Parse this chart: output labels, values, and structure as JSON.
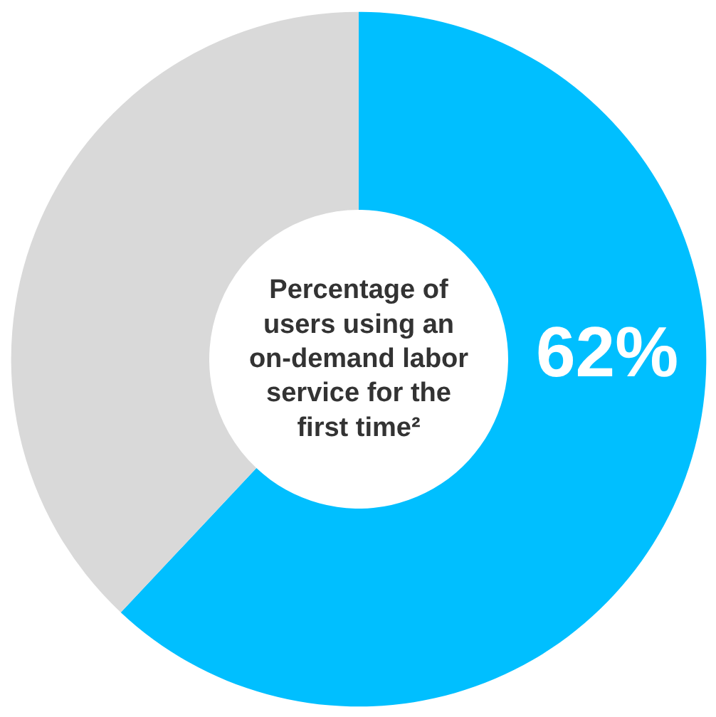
{
  "chart_data": {
    "type": "donut",
    "title": "Percentage of users using an on-demand labor service for the first time²",
    "categories": [
      null,
      null
    ],
    "values": [
      62,
      38
    ],
    "colors": [
      "#00bfff",
      "#d9d9d9"
    ],
    "value_labels": [
      "62%",
      null
    ]
  }
}
